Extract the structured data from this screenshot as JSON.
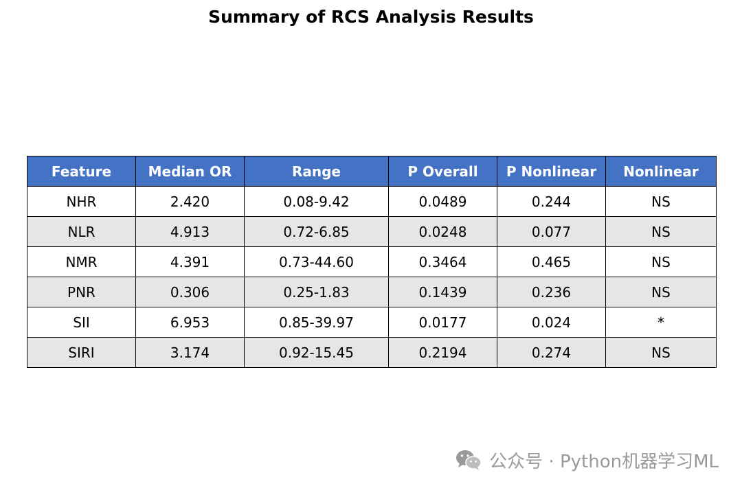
{
  "title": "Summary of RCS Analysis Results",
  "colors": {
    "header_bg": "#4472c4",
    "header_text": "#ffffff",
    "row_alt_bg": "#e6e6e6",
    "row_bg": "#ffffff",
    "watermark": "#9a9a9a"
  },
  "chart_data": {
    "type": "table",
    "title": "Summary of RCS Analysis Results",
    "columns": [
      "Feature",
      "Median OR",
      "Range",
      "P Overall",
      "P Nonlinear",
      "Nonlinear"
    ],
    "rows": [
      [
        "NHR",
        "2.420",
        "0.08-9.42",
        "0.0489",
        "0.244",
        "NS"
      ],
      [
        "NLR",
        "4.913",
        "0.72-6.85",
        "0.0248",
        "0.077",
        "NS"
      ],
      [
        "NMR",
        "4.391",
        "0.73-44.60",
        "0.3464",
        "0.465",
        "NS"
      ],
      [
        "PNR",
        "0.306",
        "0.25-1.83",
        "0.1439",
        "0.236",
        "NS"
      ],
      [
        "SII",
        "6.953",
        "0.85-39.97",
        "0.0177",
        "0.024",
        "*"
      ],
      [
        "SIRI",
        "3.174",
        "0.92-15.45",
        "0.2194",
        "0.274",
        "NS"
      ]
    ]
  },
  "watermark": {
    "icon": "wechat-icon",
    "text": "公众号 · Python机器学习ML"
  }
}
